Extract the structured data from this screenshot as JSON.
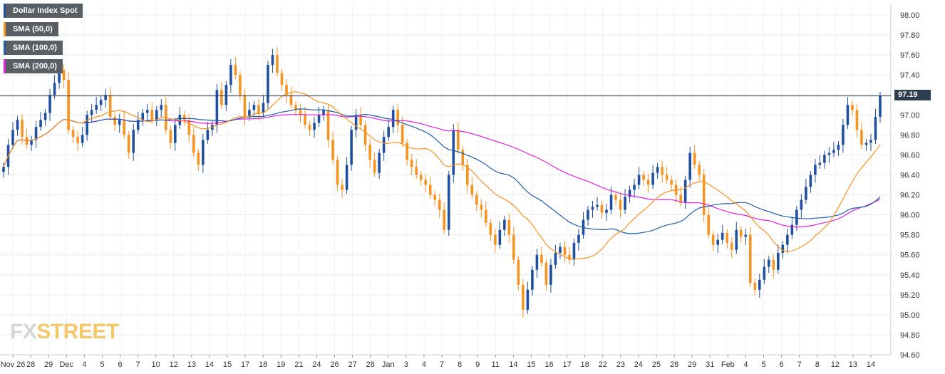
{
  "legend": [
    {
      "label": "Dollar Index Spot",
      "color": "#1f4f9e"
    },
    {
      "label": "SMA (50,0)",
      "color": "#f7931e"
    },
    {
      "label": "SMA (100,0)",
      "color": "#1f5fa8"
    },
    {
      "label": "SMA (200,0)",
      "color": "#e020e0"
    }
  ],
  "logo": {
    "fx": "FX",
    "street": "STREET"
  },
  "last_price_label": "97.19",
  "chart_data": {
    "type": "candlestick",
    "ylim": [
      94.6,
      98.1
    ],
    "y_ticks": [
      "98.00",
      "97.80",
      "97.60",
      "97.40",
      "97.20",
      "97.00",
      "96.80",
      "96.60",
      "96.40",
      "96.20",
      "96.00",
      "95.80",
      "95.60",
      "95.40",
      "95.20",
      "95.00",
      "94.80",
      "94.60"
    ],
    "x_ticks": [
      "Nov 26",
      "28",
      "29",
      "Dec",
      "4",
      "5",
      "6",
      "7",
      "10",
      "12",
      "13",
      "14",
      "15",
      "17",
      "18",
      "19",
      "21",
      "24",
      "26",
      "27",
      "28",
      "Jan",
      "3",
      "4",
      "7",
      "8",
      "9",
      "11",
      "14",
      "15",
      "16",
      "17",
      "18",
      "22",
      "23",
      "24",
      "25",
      "28",
      "29",
      "31",
      "Feb",
      "4",
      "5",
      "6",
      "7",
      "8",
      "12",
      "13",
      "14"
    ],
    "last_price": 97.19,
    "colors": {
      "up": "#1f4f9e",
      "down": "#f7931e",
      "sma50": "#f7931e",
      "sma100": "#1f5fa8",
      "sma200": "#e020e0",
      "price_line": "#2d3e50"
    },
    "close": [
      96.48,
      96.7,
      96.85,
      96.95,
      96.78,
      96.7,
      96.75,
      96.88,
      96.95,
      97.02,
      97.2,
      97.32,
      97.45,
      97.35,
      96.85,
      96.78,
      96.72,
      96.8,
      97.0,
      97.05,
      97.1,
      97.15,
      97.2,
      96.98,
      96.9,
      96.95,
      96.8,
      96.62,
      96.85,
      96.95,
      97.02,
      97.05,
      96.95,
      97.05,
      97.1,
      96.85,
      96.72,
      96.9,
      97.0,
      96.95,
      96.8,
      96.62,
      96.5,
      96.75,
      96.85,
      96.9,
      97.25,
      97.1,
      97.3,
      97.5,
      97.4,
      97.2,
      96.98,
      97.05,
      97.1,
      97.02,
      97.12,
      97.5,
      97.6,
      97.42,
      97.3,
      97.2,
      97.1,
      97.05,
      97.0,
      96.9,
      96.85,
      96.92,
      97.0,
      97.05,
      96.75,
      96.55,
      96.3,
      96.25,
      96.5,
      96.85,
      97.0,
      96.9,
      96.7,
      96.55,
      96.42,
      96.62,
      96.78,
      96.88,
      97.05,
      96.9,
      96.72,
      96.55,
      96.48,
      96.4,
      96.35,
      96.3,
      96.2,
      96.15,
      96.05,
      95.85,
      96.4,
      96.85,
      96.65,
      96.5,
      96.3,
      96.2,
      96.1,
      96.05,
      95.92,
      95.8,
      95.7,
      95.85,
      95.95,
      95.8,
      95.55,
      95.3,
      95.05,
      95.25,
      95.45,
      95.6,
      95.52,
      95.3,
      95.5,
      95.62,
      95.68,
      95.6,
      95.55,
      95.72,
      95.8,
      95.95,
      96.05,
      96.08,
      96.1,
      96.02,
      96.05,
      96.2,
      96.15,
      96.05,
      96.18,
      96.25,
      96.3,
      96.4,
      96.35,
      96.3,
      96.42,
      96.48,
      96.4,
      96.35,
      96.3,
      96.2,
      96.12,
      96.35,
      96.62,
      96.5,
      96.4,
      96.0,
      95.8,
      95.7,
      95.75,
      95.82,
      95.72,
      95.65,
      95.85,
      95.78,
      95.8,
      95.32,
      95.25,
      95.35,
      95.48,
      95.55,
      95.45,
      95.62,
      95.7,
      95.8,
      95.9,
      96.05,
      96.15,
      96.28,
      96.4,
      96.5,
      96.52,
      96.6,
      96.62,
      96.65,
      96.7,
      96.9,
      97.1,
      97.05,
      96.85,
      96.7,
      96.72,
      96.75,
      96.98,
      97.19
    ],
    "price_line_y": 97.19
  }
}
